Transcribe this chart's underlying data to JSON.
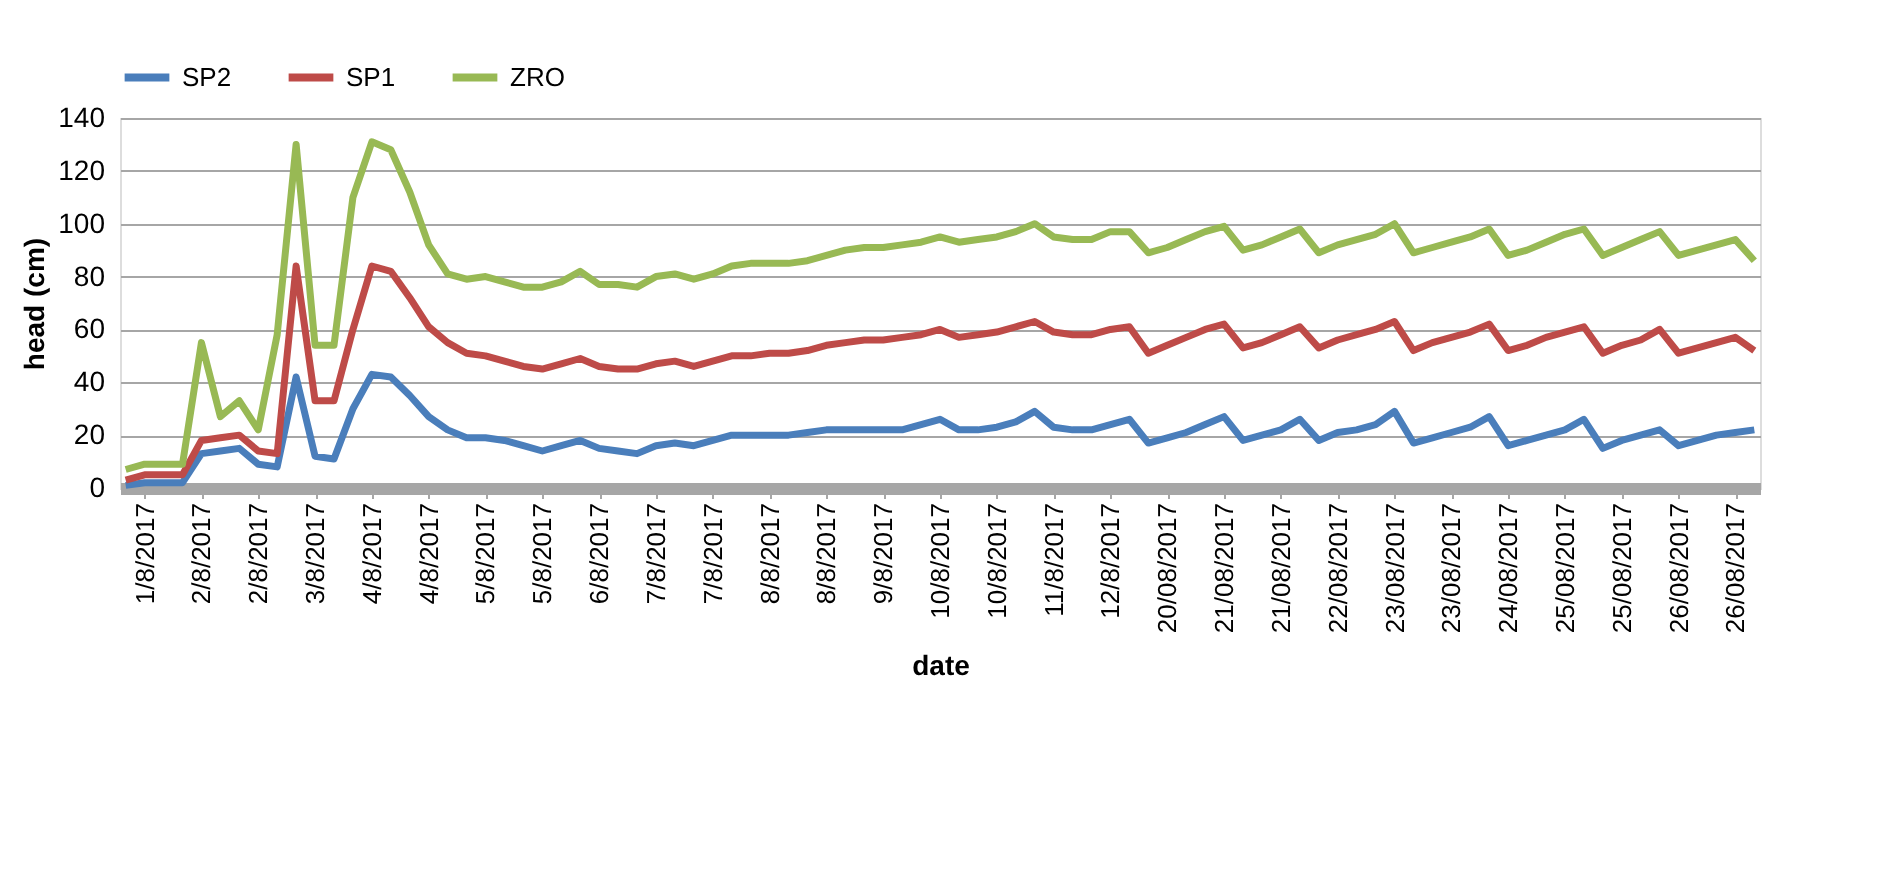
{
  "chart_data": {
    "type": "line",
    "xlabel": "date",
    "ylabel": "head (cm)",
    "categories": [
      null,
      "1/8/2017",
      null,
      null,
      "2/8/2017",
      null,
      null,
      "2/8/2017",
      null,
      null,
      "3/8/2017",
      null,
      null,
      "4/8/2017",
      null,
      null,
      "4/8/2017",
      null,
      null,
      "5/8/2017",
      null,
      null,
      "5/8/2017",
      null,
      null,
      "6/8/2017",
      null,
      null,
      "7/8/2017",
      null,
      null,
      "7/8/2017",
      null,
      null,
      "8/8/2017",
      null,
      null,
      "8/8/2017",
      null,
      null,
      "9/8/2017",
      null,
      null,
      "10/8/2017",
      null,
      null,
      "10/8/2017",
      null,
      null,
      "11/8/2017",
      null,
      null,
      "12/8/2017",
      null,
      null,
      "20/08/2017",
      null,
      null,
      "21/08/2017",
      null,
      null,
      "21/08/2017",
      null,
      null,
      "22/08/2017",
      null,
      null,
      "23/08/2017",
      null,
      null,
      "23/08/2017",
      null,
      null,
      "24/08/2017",
      null,
      null,
      "25/08/2017",
      null,
      null,
      "25/08/2017",
      null,
      null,
      "26/08/2017",
      null,
      null,
      "26/08/2017",
      null
    ],
    "series": [
      {
        "name": "SP2",
        "color": "#4a7ebb",
        "values": [
          1,
          2,
          2,
          2,
          13,
          14,
          15,
          9,
          8,
          42,
          12,
          11,
          30,
          43,
          42,
          35,
          27,
          22,
          19,
          19,
          18,
          16,
          14,
          16,
          18,
          15,
          14,
          13,
          16,
          17,
          16,
          18,
          20,
          20,
          20,
          20,
          21,
          22,
          22,
          22,
          22,
          22,
          24,
          26,
          22,
          22,
          23,
          25,
          29,
          23,
          22,
          22,
          24,
          26,
          17,
          19,
          21,
          24,
          27,
          18,
          20,
          22,
          26,
          18,
          21,
          22,
          24,
          29,
          17,
          19,
          21,
          23,
          27,
          16,
          18,
          20,
          22,
          26,
          15,
          18,
          20,
          22,
          16,
          18,
          20,
          21,
          22
        ]
      },
      {
        "name": "SP1",
        "color": "#be4b48",
        "values": [
          3,
          5,
          5,
          5,
          18,
          19,
          20,
          14,
          13,
          84,
          33,
          33,
          60,
          84,
          82,
          72,
          61,
          55,
          51,
          50,
          48,
          46,
          45,
          47,
          49,
          46,
          45,
          45,
          47,
          48,
          46,
          48,
          50,
          50,
          51,
          51,
          52,
          54,
          55,
          56,
          56,
          57,
          58,
          60,
          57,
          58,
          59,
          61,
          63,
          59,
          58,
          58,
          60,
          61,
          51,
          54,
          57,
          60,
          62,
          53,
          55,
          58,
          61,
          53,
          56,
          58,
          60,
          63,
          52,
          55,
          57,
          59,
          62,
          52,
          54,
          57,
          59,
          61,
          51,
          54,
          56,
          60,
          51,
          53,
          55,
          57,
          52
        ]
      },
      {
        "name": "ZRO",
        "color": "#98b954",
        "values": [
          7,
          9,
          9,
          9,
          55,
          27,
          33,
          22,
          58,
          130,
          54,
          54,
          110,
          131,
          128,
          112,
          92,
          81,
          79,
          80,
          78,
          76,
          76,
          78,
          82,
          77,
          77,
          76,
          80,
          81,
          79,
          81,
          84,
          85,
          85,
          85,
          86,
          88,
          90,
          91,
          91,
          92,
          93,
          95,
          93,
          94,
          95,
          97,
          100,
          95,
          94,
          94,
          97,
          97,
          89,
          91,
          94,
          97,
          99,
          90,
          92,
          95,
          98,
          89,
          92,
          94,
          96,
          100,
          89,
          91,
          93,
          95,
          98,
          88,
          90,
          93,
          96,
          98,
          88,
          91,
          94,
          97,
          88,
          90,
          92,
          94,
          86
        ]
      }
    ],
    "ylim": [
      0,
      140
    ],
    "yticks": [
      0,
      20,
      40,
      60,
      80,
      100,
      120,
      140
    ],
    "grid": "y",
    "legend": "top",
    "marker": "none",
    "line_style": "solid"
  }
}
